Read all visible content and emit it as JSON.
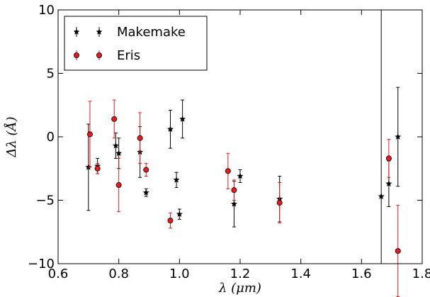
{
  "chart_data": {
    "type": "scatter",
    "title": "",
    "xlabel": "λ (μm)",
    "ylabel": "Δλ (Å)",
    "xlim": [
      0.6,
      1.8
    ],
    "ylim": [
      -10,
      10
    ],
    "x_ticks": [
      "0.6",
      "0.8",
      "1.0",
      "1.2",
      "1.4",
      "1.6",
      "1.8"
    ],
    "y_ticks": [
      "10",
      "5",
      "0",
      "−5",
      "−10"
    ],
    "grid": false,
    "legend_position": "top-left",
    "vertical_line_x": 1.665,
    "series": [
      {
        "name": "Makemake",
        "marker": "star",
        "color": "#000000",
        "points": [
          {
            "x": 0.7,
            "y": -2.4,
            "err": 3.4
          },
          {
            "x": 0.73,
            "y": -2.3,
            "err": 0.6
          },
          {
            "x": 0.79,
            "y": -0.7,
            "err": 1.0
          },
          {
            "x": 0.8,
            "y": -1.3,
            "err": 1.2
          },
          {
            "x": 0.87,
            "y": -1.2,
            "err": 2.0
          },
          {
            "x": 0.89,
            "y": -4.4,
            "err": 0.3
          },
          {
            "x": 0.97,
            "y": 0.6,
            "err": 1.5
          },
          {
            "x": 0.99,
            "y": -3.4,
            "err": 0.6
          },
          {
            "x": 1.0,
            "y": -6.1,
            "err": 0.4
          },
          {
            "x": 1.01,
            "y": 1.4,
            "err": 1.5
          },
          {
            "x": 1.18,
            "y": -5.3,
            "err": 1.8
          },
          {
            "x": 1.2,
            "y": -3.1,
            "err": 0.5
          },
          {
            "x": 1.33,
            "y": -4.9,
            "err": 1.8
          },
          {
            "x": 1.665,
            "y": -4.7,
            "err": 0
          },
          {
            "x": 1.69,
            "y": -3.7,
            "err": 1.8
          },
          {
            "x": 1.72,
            "y": 0.0,
            "err": 3.9
          }
        ]
      },
      {
        "name": "Eris",
        "marker": "circle",
        "color": "#e8191f",
        "points": [
          {
            "x": 0.705,
            "y": 0.2,
            "err": 2.6
          },
          {
            "x": 0.73,
            "y": -2.5,
            "err": 0.4
          },
          {
            "x": 0.785,
            "y": 1.4,
            "err": 1.5
          },
          {
            "x": 0.8,
            "y": -3.8,
            "err": 2.1
          },
          {
            "x": 0.87,
            "y": -0.1,
            "err": 2.0
          },
          {
            "x": 0.89,
            "y": -2.6,
            "err": 0.5
          },
          {
            "x": 0.97,
            "y": -6.6,
            "err": 0.6
          },
          {
            "x": 1.16,
            "y": -2.7,
            "err": 1.4
          },
          {
            "x": 1.18,
            "y": -4.2,
            "err": 0.8
          },
          {
            "x": 1.33,
            "y": -5.2,
            "err": 1.6
          },
          {
            "x": 1.69,
            "y": -1.7,
            "err": 1.5
          },
          {
            "x": 1.72,
            "y": -9.0,
            "err": 3.6
          }
        ]
      }
    ]
  }
}
